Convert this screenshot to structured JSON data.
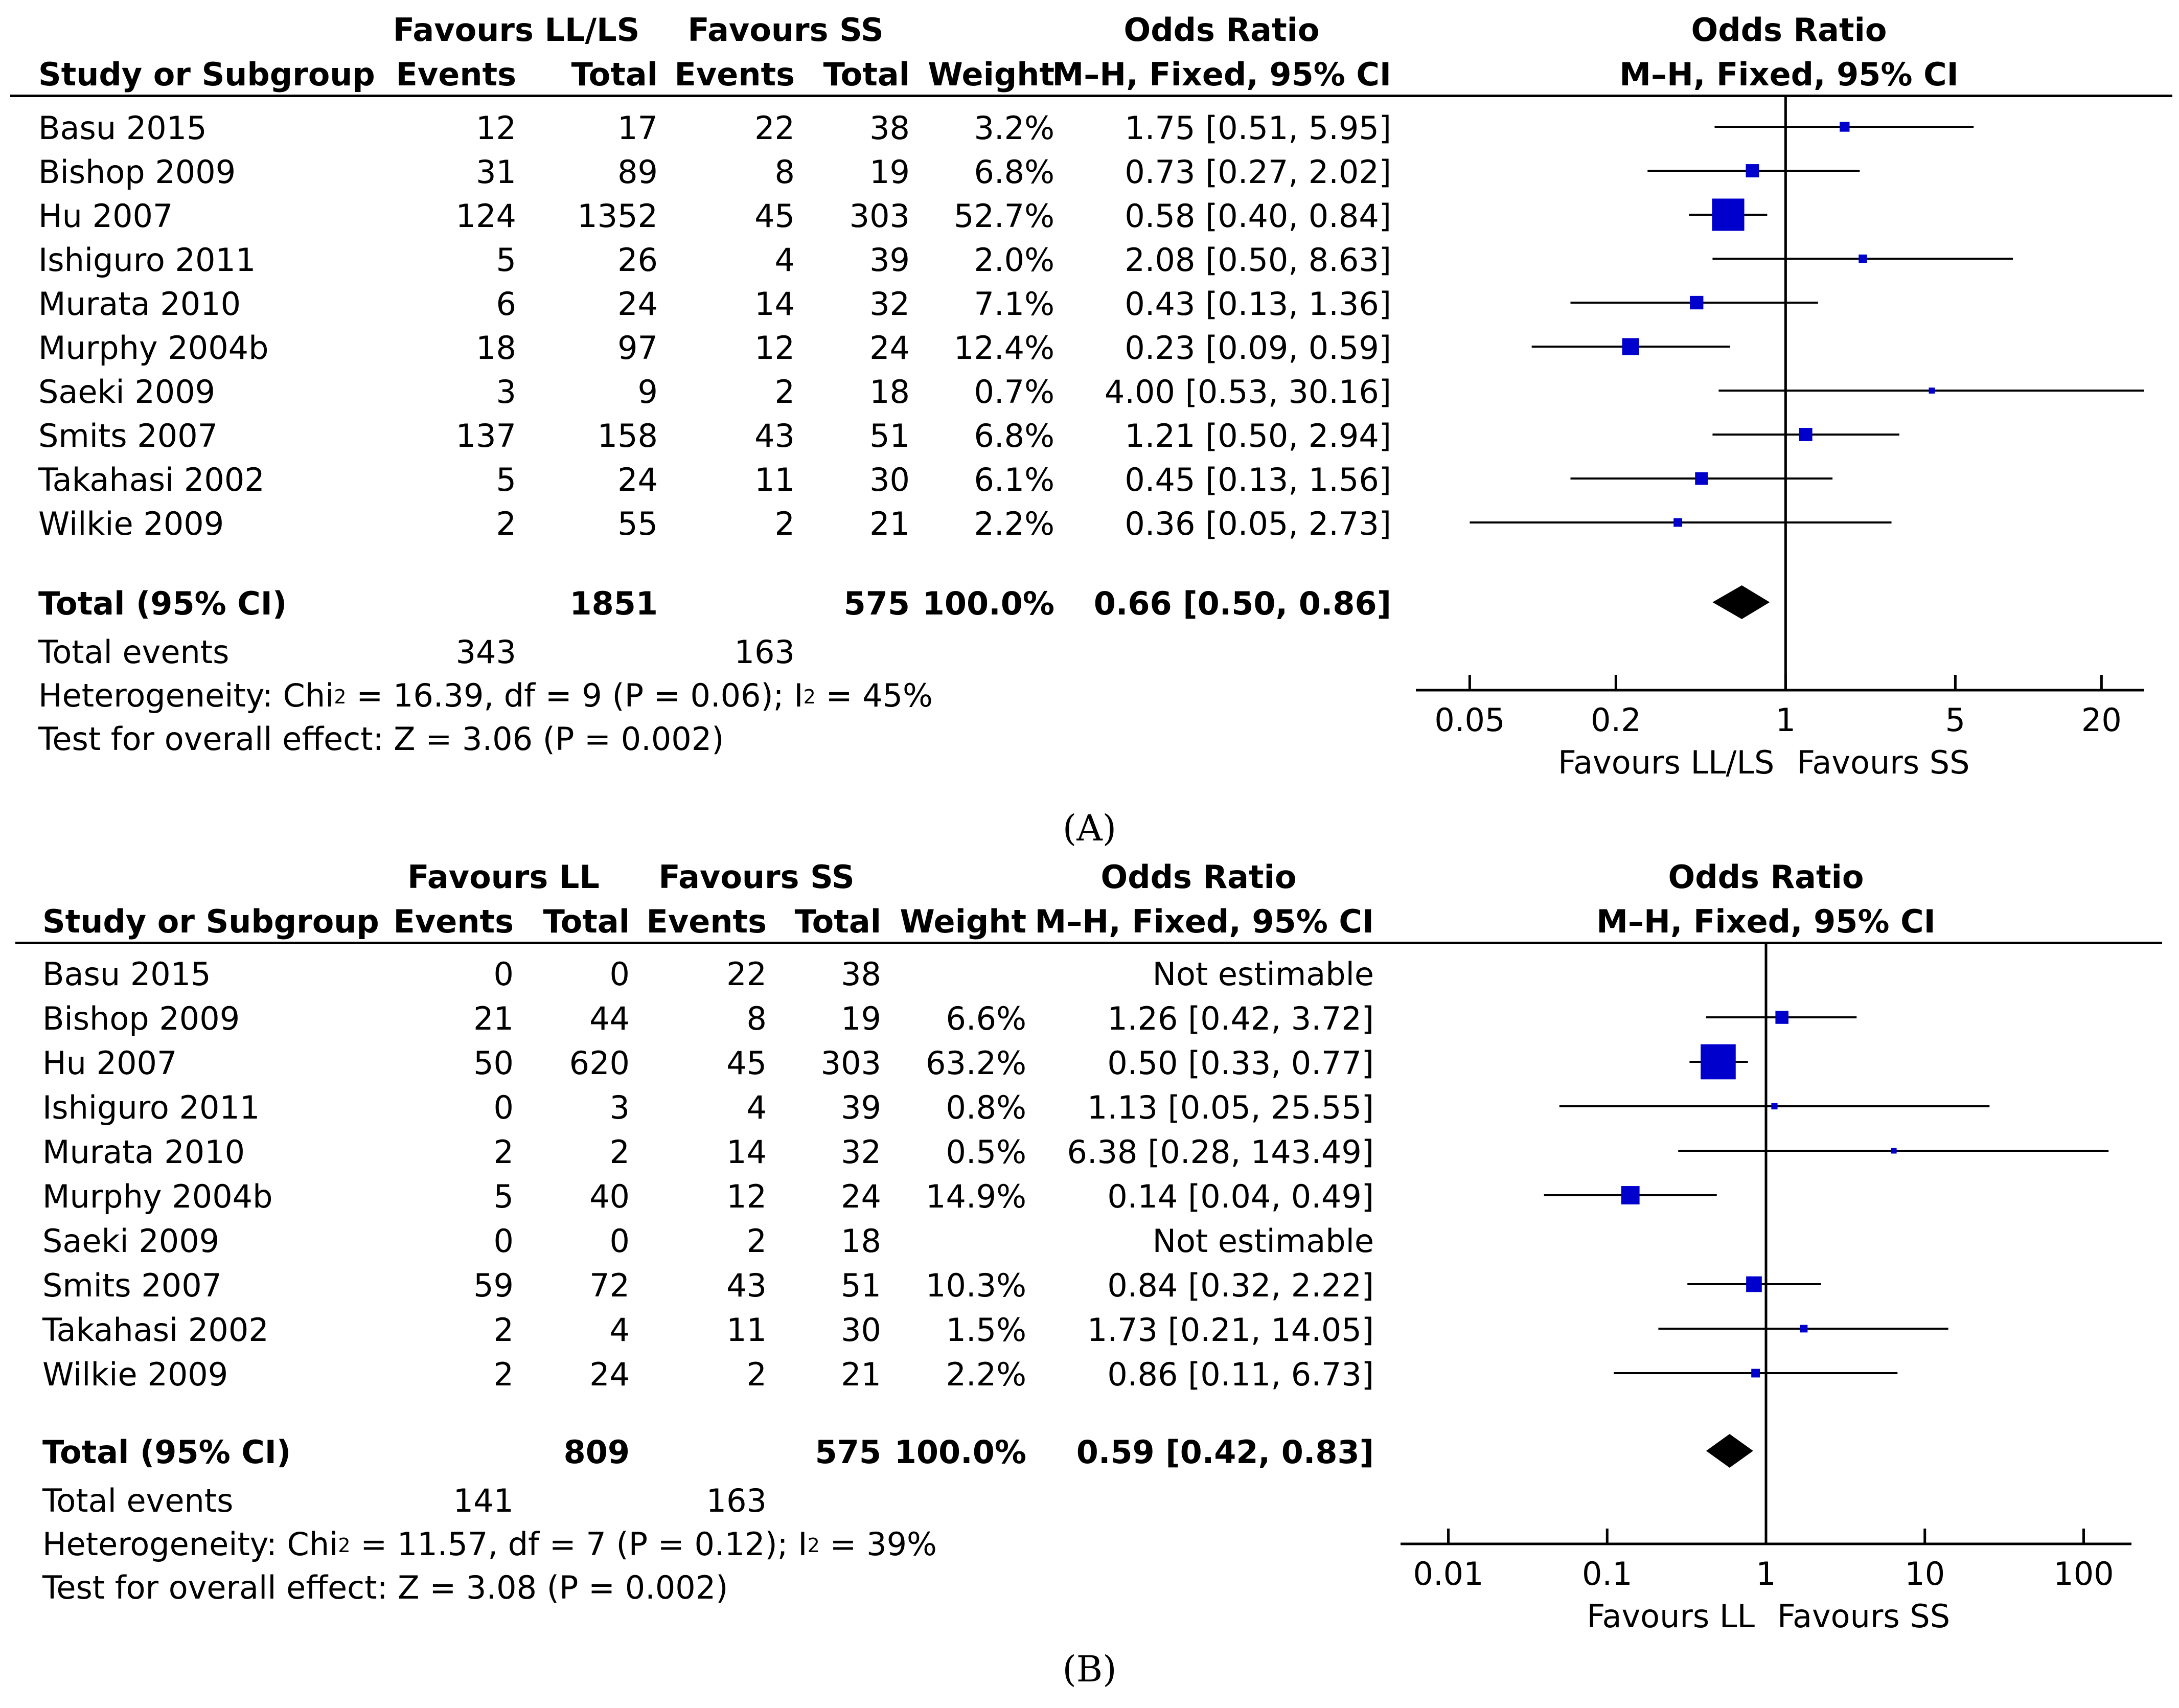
{
  "panels": [
    {
      "id": "A",
      "panel_label": "(A)",
      "header": {
        "group1_label": "Favours LL/LS",
        "group2_label": "Favours SS",
        "study_col": "Study or Subgroup",
        "events_col": "Events",
        "total_col": "Total",
        "weight_col": "Weight",
        "or_col_top": "Odds Ratio",
        "or_col_bottom": "M–H, Fixed, 95% CI",
        "plot_col_top": "Odds Ratio",
        "plot_col_bottom": "M–H, Fixed, 95% CI"
      },
      "rows": [
        {
          "study": "Basu 2015",
          "e1": "12",
          "t1": "17",
          "e2": "22",
          "t2": "38",
          "weight": "3.2%",
          "ci": "1.75 [0.51, 5.95]"
        },
        {
          "study": "Bishop 2009",
          "e1": "31",
          "t1": "89",
          "e2": "8",
          "t2": "19",
          "weight": "6.8%",
          "ci": "0.73 [0.27, 2.02]"
        },
        {
          "study": "Hu 2007",
          "e1": "124",
          "t1": "1352",
          "e2": "45",
          "t2": "303",
          "weight": "52.7%",
          "ci": "0.58 [0.40, 0.84]"
        },
        {
          "study": "Ishiguro 2011",
          "e1": "5",
          "t1": "26",
          "e2": "4",
          "t2": "39",
          "weight": "2.0%",
          "ci": "2.08 [0.50, 8.63]"
        },
        {
          "study": "Murata 2010",
          "e1": "6",
          "t1": "24",
          "e2": "14",
          "t2": "32",
          "weight": "7.1%",
          "ci": "0.43 [0.13, 1.36]"
        },
        {
          "study": "Murphy 2004b",
          "e1": "18",
          "t1": "97",
          "e2": "12",
          "t2": "24",
          "weight": "12.4%",
          "ci": "0.23 [0.09, 0.59]"
        },
        {
          "study": "Saeki 2009",
          "e1": "3",
          "t1": "9",
          "e2": "2",
          "t2": "18",
          "weight": "0.7%",
          "ci": "4.00 [0.53, 30.16]"
        },
        {
          "study": "Smits 2007",
          "e1": "137",
          "t1": "158",
          "e2": "43",
          "t2": "51",
          "weight": "6.8%",
          "ci": "1.21 [0.50, 2.94]"
        },
        {
          "study": "Takahasi 2002",
          "e1": "5",
          "t1": "24",
          "e2": "11",
          "t2": "30",
          "weight": "6.1%",
          "ci": "0.45 [0.13, 1.56]"
        },
        {
          "study": "Wilkie 2009",
          "e1": "2",
          "t1": "55",
          "e2": "2",
          "t2": "21",
          "weight": "2.2%",
          "ci": "0.36 [0.05, 2.73]"
        }
      ],
      "total": {
        "label": "Total (95% CI)",
        "t1": "1851",
        "t2": "575",
        "weight": "100.0%",
        "ci": "0.66 [0.50, 0.86]"
      },
      "total_events": {
        "label": "Total events",
        "e1": "343",
        "e2": "163"
      },
      "heterogeneity": {
        "prefix": "Heterogeneity: Chi",
        "sup1": "2",
        "middle": " = 16.39, df = 9 (P = 0.06); I",
        "sup2": "2",
        "suffix": " = 45%"
      },
      "overall_effect": "Test for overall effect: Z = 3.06 (P = 0.002)",
      "axis": {
        "ticks": [
          "0.05",
          "0.2",
          "1",
          "5",
          "20"
        ],
        "favours_left": "Favours LL/LS",
        "favours_right": "Favours SS"
      }
    },
    {
      "id": "B",
      "panel_label": "(B)",
      "header": {
        "group1_label": "Favours LL",
        "group2_label": "Favours SS",
        "study_col": "Study or Subgroup",
        "events_col": "Events",
        "total_col": "Total",
        "weight_col": "Weight",
        "or_col_top": "Odds Ratio",
        "or_col_bottom": "M–H, Fixed, 95% CI",
        "plot_col_top": "Odds Ratio",
        "plot_col_bottom": "M–H, Fixed, 95% CI"
      },
      "rows": [
        {
          "study": "Basu 2015",
          "e1": "0",
          "t1": "0",
          "e2": "22",
          "t2": "38",
          "weight": "",
          "ci": "Not estimable"
        },
        {
          "study": "Bishop 2009",
          "e1": "21",
          "t1": "44",
          "e2": "8",
          "t2": "19",
          "weight": "6.6%",
          "ci": "1.26 [0.42, 3.72]"
        },
        {
          "study": "Hu 2007",
          "e1": "50",
          "t1": "620",
          "e2": "45",
          "t2": "303",
          "weight": "63.2%",
          "ci": "0.50 [0.33, 0.77]"
        },
        {
          "study": "Ishiguro 2011",
          "e1": "0",
          "t1": "3",
          "e2": "4",
          "t2": "39",
          "weight": "0.8%",
          "ci": "1.13 [0.05, 25.55]"
        },
        {
          "study": "Murata 2010",
          "e1": "2",
          "t1": "2",
          "e2": "14",
          "t2": "32",
          "weight": "0.5%",
          "ci": "6.38 [0.28, 143.49]"
        },
        {
          "study": "Murphy 2004b",
          "e1": "5",
          "t1": "40",
          "e2": "12",
          "t2": "24",
          "weight": "14.9%",
          "ci": "0.14 [0.04, 0.49]"
        },
        {
          "study": "Saeki 2009",
          "e1": "0",
          "t1": "0",
          "e2": "2",
          "t2": "18",
          "weight": "",
          "ci": "Not estimable"
        },
        {
          "study": "Smits 2007",
          "e1": "59",
          "t1": "72",
          "e2": "43",
          "t2": "51",
          "weight": "10.3%",
          "ci": "0.84 [0.32, 2.22]"
        },
        {
          "study": "Takahasi 2002",
          "e1": "2",
          "t1": "4",
          "e2": "11",
          "t2": "30",
          "weight": "1.5%",
          "ci": "1.73 [0.21, 14.05]"
        },
        {
          "study": "Wilkie 2009",
          "e1": "2",
          "t1": "24",
          "e2": "2",
          "t2": "21",
          "weight": "2.2%",
          "ci": "0.86 [0.11, 6.73]"
        }
      ],
      "total": {
        "label": "Total (95% CI)",
        "t1": "809",
        "t2": "575",
        "weight": "100.0%",
        "ci": "0.59 [0.42, 0.83]"
      },
      "total_events": {
        "label": "Total events",
        "e1": "141",
        "e2": "163"
      },
      "heterogeneity": {
        "prefix": "Heterogeneity: Chi",
        "sup1": "2",
        "middle": " = 11.57, df = 7 (P = 0.12); I",
        "sup2": "2",
        "suffix": " = 39%"
      },
      "overall_effect": "Test for overall effect: Z = 3.08 (P = 0.002)",
      "axis": {
        "ticks": [
          "0.01",
          "0.1",
          "1",
          "10",
          "100"
        ],
        "favours_left": "Favours LL",
        "favours_right": "Favours SS"
      }
    }
  ],
  "chart_data": [
    {
      "type": "forest",
      "title": "Odds Ratio M–H, Fixed, 95% CI",
      "scale": "log",
      "xlim": [
        0.03,
        30
      ],
      "ticks": [
        0.05,
        0.2,
        1,
        5,
        20
      ],
      "reference_line": 1,
      "marker_color": "#0000cc",
      "studies": [
        {
          "name": "Basu 2015",
          "or": 1.75,
          "lo": 0.51,
          "hi": 5.95,
          "weight": 3.2
        },
        {
          "name": "Bishop 2009",
          "or": 0.73,
          "lo": 0.27,
          "hi": 2.02,
          "weight": 6.8
        },
        {
          "name": "Hu 2007",
          "or": 0.58,
          "lo": 0.4,
          "hi": 0.84,
          "weight": 52.7
        },
        {
          "name": "Ishiguro 2011",
          "or": 2.08,
          "lo": 0.5,
          "hi": 8.63,
          "weight": 2.0
        },
        {
          "name": "Murata 2010",
          "or": 0.43,
          "lo": 0.13,
          "hi": 1.36,
          "weight": 7.1
        },
        {
          "name": "Murphy 2004b",
          "or": 0.23,
          "lo": 0.09,
          "hi": 0.59,
          "weight": 12.4
        },
        {
          "name": "Saeki 2009",
          "or": 4.0,
          "lo": 0.53,
          "hi": 30.16,
          "weight": 0.7
        },
        {
          "name": "Smits 2007",
          "or": 1.21,
          "lo": 0.5,
          "hi": 2.94,
          "weight": 6.8
        },
        {
          "name": "Takahasi 2002",
          "or": 0.45,
          "lo": 0.13,
          "hi": 1.56,
          "weight": 6.1
        },
        {
          "name": "Wilkie 2009",
          "or": 0.36,
          "lo": 0.05,
          "hi": 2.73,
          "weight": 2.2
        }
      ],
      "pooled": {
        "or": 0.66,
        "lo": 0.5,
        "hi": 0.86
      }
    },
    {
      "type": "forest",
      "title": "Odds Ratio M–H, Fixed, 95% CI",
      "scale": "log",
      "xlim": [
        0.005,
        200
      ],
      "ticks": [
        0.01,
        0.1,
        1,
        10,
        100
      ],
      "reference_line": 1,
      "marker_color": "#0000cc",
      "studies": [
        {
          "name": "Basu 2015",
          "or": null,
          "lo": null,
          "hi": null,
          "weight": null
        },
        {
          "name": "Bishop 2009",
          "or": 1.26,
          "lo": 0.42,
          "hi": 3.72,
          "weight": 6.6
        },
        {
          "name": "Hu 2007",
          "or": 0.5,
          "lo": 0.33,
          "hi": 0.77,
          "weight": 63.2
        },
        {
          "name": "Ishiguro 2011",
          "or": 1.13,
          "lo": 0.05,
          "hi": 25.55,
          "weight": 0.8
        },
        {
          "name": "Murata 2010",
          "or": 6.38,
          "lo": 0.28,
          "hi": 143.49,
          "weight": 0.5
        },
        {
          "name": "Murphy 2004b",
          "or": 0.14,
          "lo": 0.04,
          "hi": 0.49,
          "weight": 14.9
        },
        {
          "name": "Saeki 2009",
          "or": null,
          "lo": null,
          "hi": null,
          "weight": null
        },
        {
          "name": "Smits 2007",
          "or": 0.84,
          "lo": 0.32,
          "hi": 2.22,
          "weight": 10.3
        },
        {
          "name": "Takahasi 2002",
          "or": 1.73,
          "lo": 0.21,
          "hi": 14.05,
          "weight": 1.5
        },
        {
          "name": "Wilkie 2009",
          "or": 0.86,
          "lo": 0.11,
          "hi": 6.73,
          "weight": 2.2
        }
      ],
      "pooled": {
        "or": 0.59,
        "lo": 0.42,
        "hi": 0.83
      }
    }
  ]
}
